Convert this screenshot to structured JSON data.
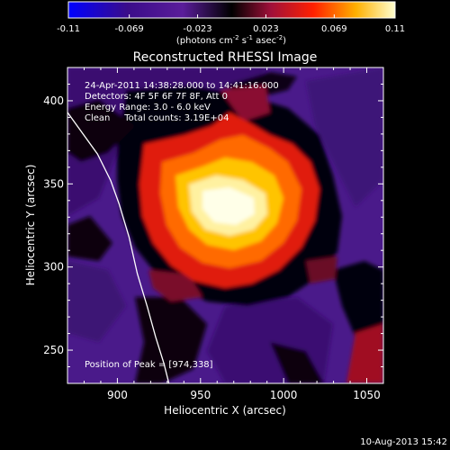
{
  "chart_data": {
    "type": "heatmap",
    "title": "Reconstructed RHESSI Image",
    "xlabel": "Heliocentric X (arcsec)",
    "ylabel": "Heliocentric Y (arcsec)",
    "xlim": [
      870,
      1060
    ],
    "ylim": [
      230,
      420
    ],
    "xticks": [
      900,
      950,
      1000,
      1050
    ],
    "yticks": [
      250,
      300,
      350,
      400
    ],
    "colorbar": {
      "ticks": [
        "-0.11",
        "-0.069",
        "-0.023",
        "0.023",
        "0.069",
        "0.11"
      ],
      "tick_values": [
        -0.11,
        -0.069,
        -0.023,
        0.023,
        0.069,
        0.11
      ],
      "range": [
        -0.11,
        0.11
      ],
      "unit_prefix": "(photons cm",
      "unit_sup1": "-2",
      "unit_mid": " s",
      "unit_sup2": "-1",
      "unit_mid2": " asec",
      "unit_sup3": "-2",
      "unit_suffix": ")"
    },
    "annotations": [
      "24-Apr-2011 14:38:28.000 to 14:41:16.000",
      "Detectors: 4F 5F 6F 7F 8F, Att 0",
      "Energy Range: 3.0 - 6.0 keV",
      "Clean     Total counts: 3.19E+04"
    ],
    "peak_label": "Position of Peak = [974,338]",
    "peak": [
      974,
      338
    ],
    "limb": [
      [
        870,
        393
      ],
      [
        888,
        368
      ],
      [
        896,
        352
      ],
      [
        901,
        338
      ],
      [
        907,
        318
      ],
      [
        912,
        296
      ],
      [
        918,
        276
      ],
      [
        923,
        258
      ],
      [
        928,
        242
      ],
      [
        931,
        230
      ]
    ]
  },
  "footer": {
    "timestamp": "10-Aug-2013 15:42"
  }
}
